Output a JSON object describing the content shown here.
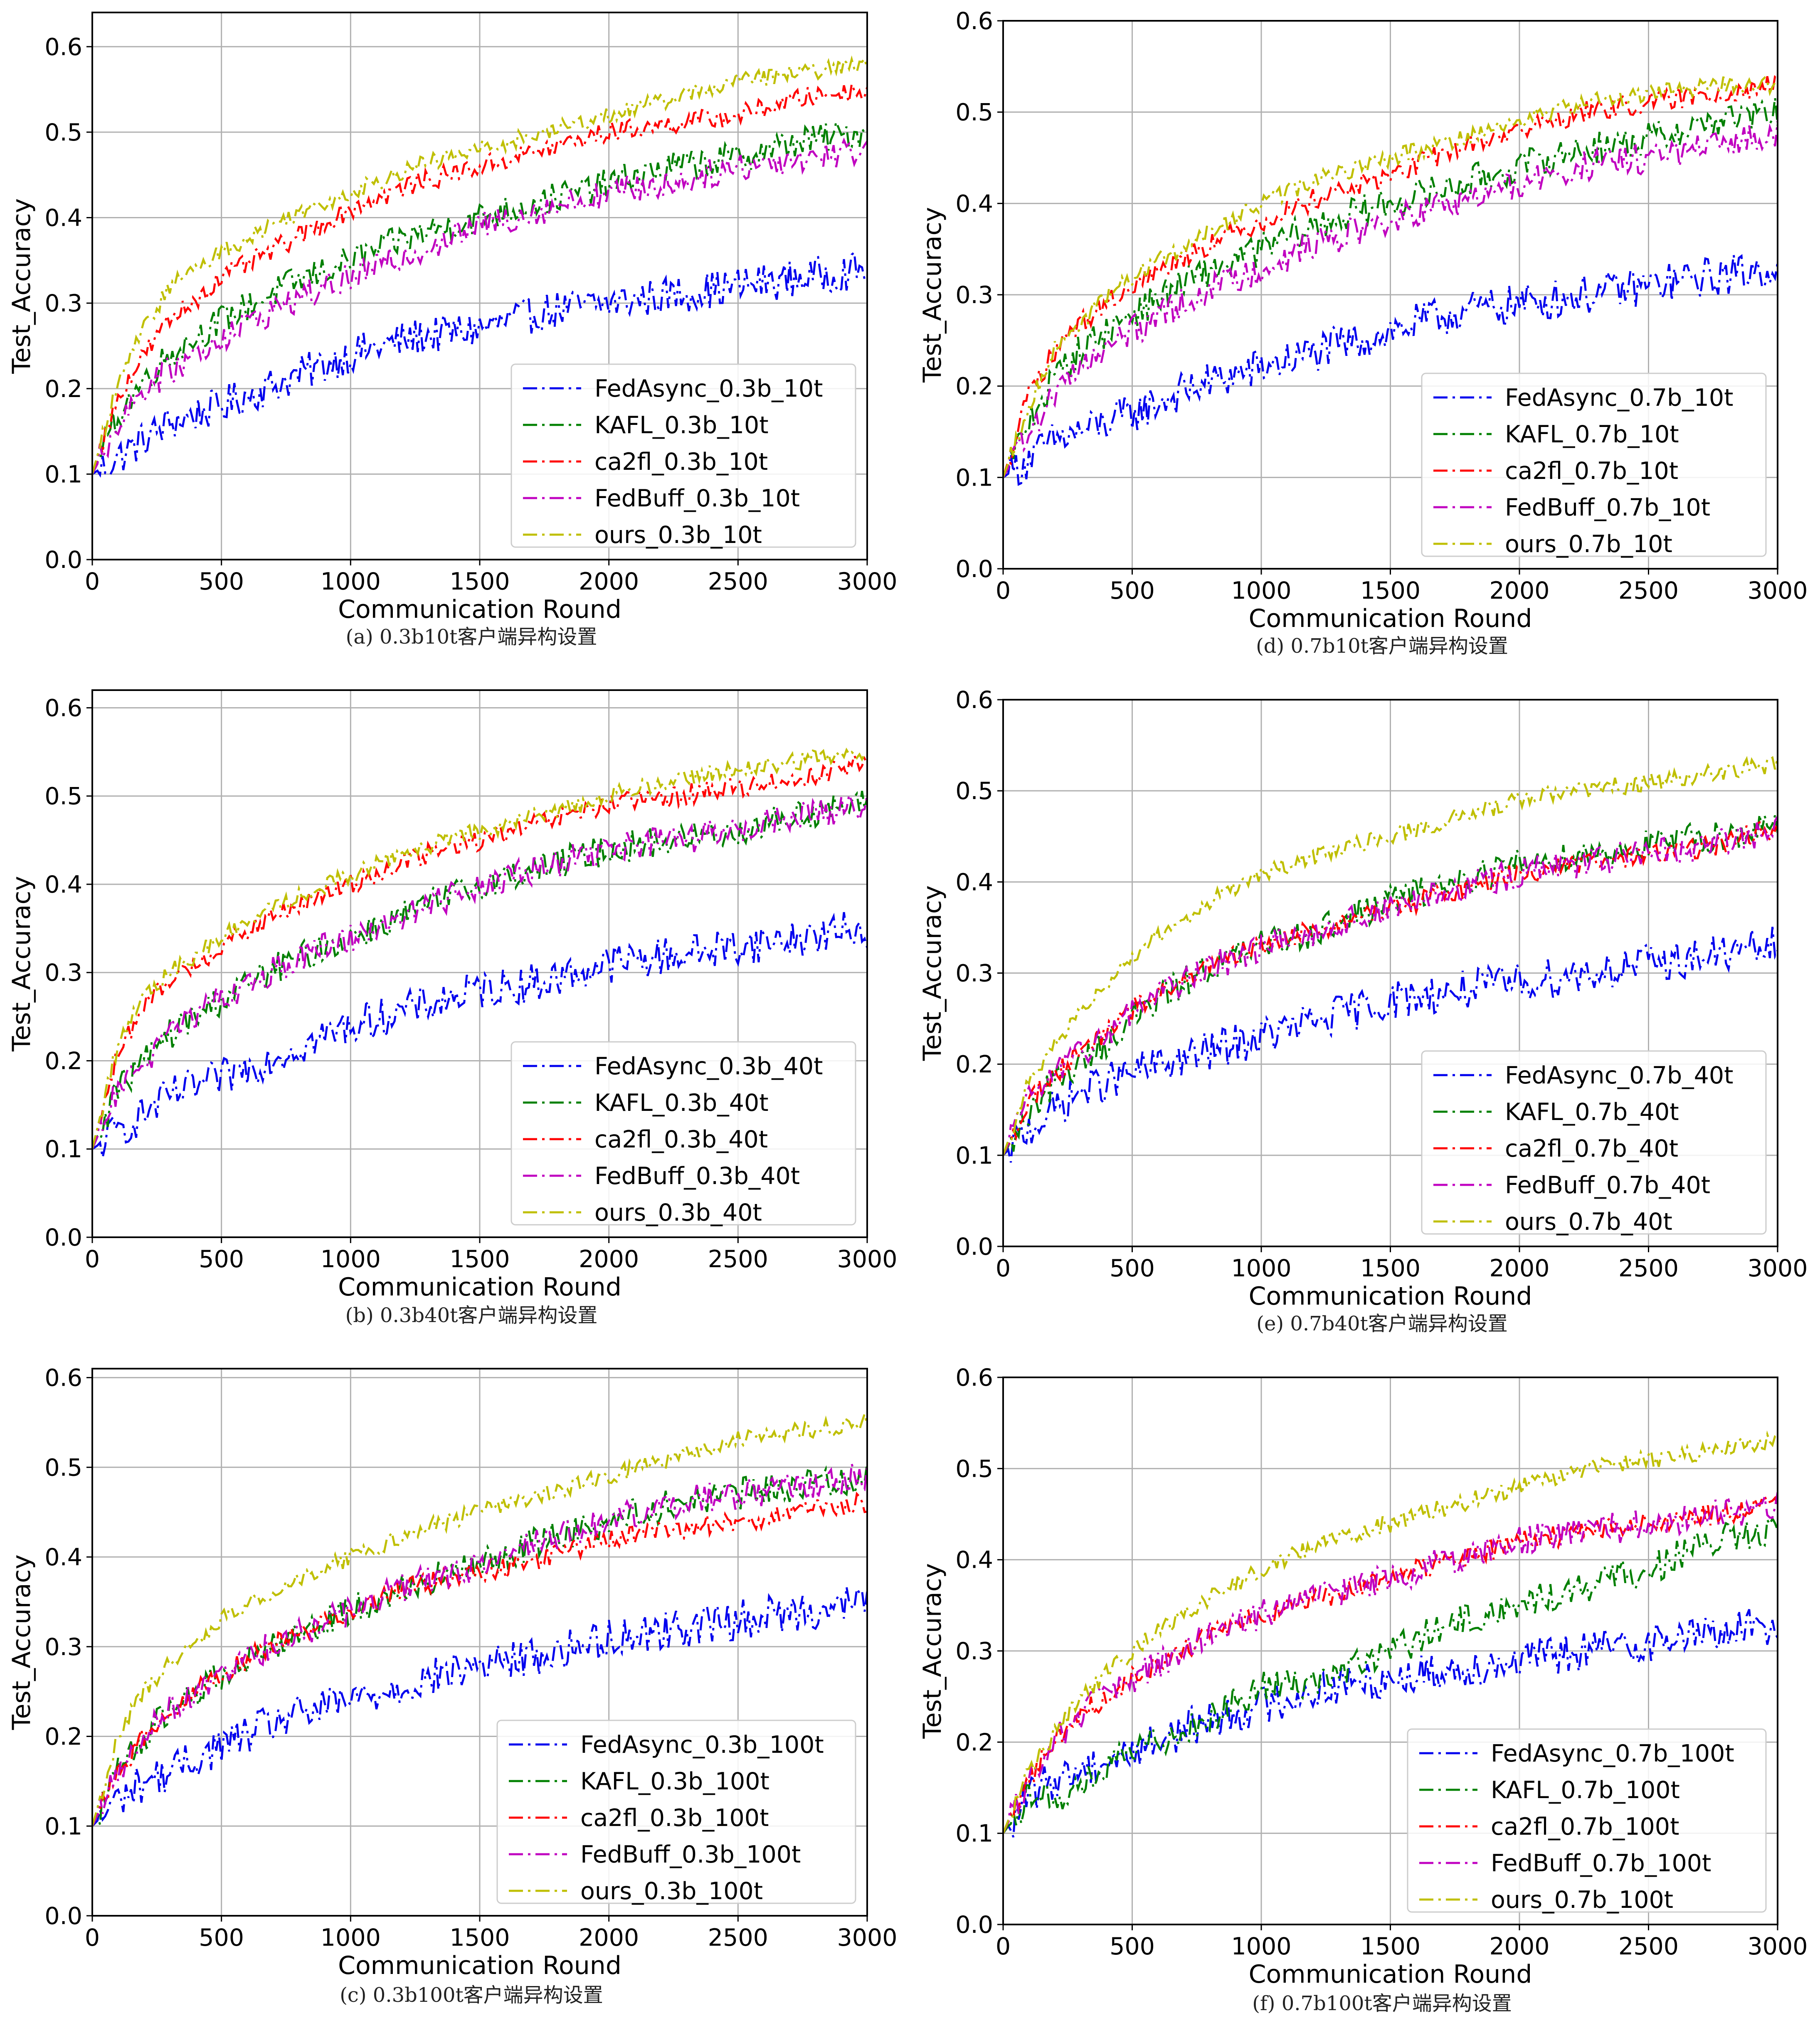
{
  "colors": {
    "FedAsync": "#0000ee",
    "KAFL": "#008000",
    "ca2fl": "#ff0000",
    "FedBuff": "#c000c0",
    "ours": "#bfbf00"
  },
  "chart_data": [
    {
      "id": "a",
      "type": "line",
      "caption": "(a) 0.3b10t客户端异构设置",
      "xlabel": "Communication Round",
      "ylabel": "Test_Accuracy",
      "xlim": [
        0,
        3000
      ],
      "ylim": [
        0,
        0.64
      ],
      "xticks": [
        "0",
        "500",
        "1000",
        "1500",
        "2000",
        "2500",
        "3000"
      ],
      "yticks": [
        "0.0",
        "0.1",
        "0.2",
        "0.3",
        "0.4",
        "0.5",
        "0.6"
      ],
      "grid": true,
      "legend_position": "lower-right",
      "x": [
        0,
        100,
        200,
        300,
        500,
        750,
        1000,
        1250,
        1500,
        1750,
        2000,
        2250,
        2500,
        2750,
        3000
      ],
      "series": [
        {
          "name": "FedAsync_0.3b_10t",
          "key": "FedAsync",
          "values": [
            0.1,
            0.12,
            0.14,
            0.16,
            0.18,
            0.21,
            0.24,
            0.26,
            0.27,
            0.29,
            0.3,
            0.31,
            0.32,
            0.33,
            0.34
          ]
        },
        {
          "name": "KAFL_0.3b_10t",
          "key": "KAFL",
          "values": [
            0.1,
            0.17,
            0.21,
            0.24,
            0.28,
            0.32,
            0.35,
            0.38,
            0.4,
            0.42,
            0.44,
            0.46,
            0.47,
            0.49,
            0.5
          ]
        },
        {
          "name": "ca2fl_0.3b_10t",
          "key": "ca2fl",
          "values": [
            0.1,
            0.19,
            0.24,
            0.28,
            0.33,
            0.37,
            0.41,
            0.44,
            0.46,
            0.48,
            0.5,
            0.51,
            0.52,
            0.54,
            0.55
          ]
        },
        {
          "name": "FedBuff_0.3b_10t",
          "key": "FedBuff",
          "values": [
            0.1,
            0.16,
            0.2,
            0.22,
            0.26,
            0.3,
            0.33,
            0.36,
            0.39,
            0.41,
            0.43,
            0.44,
            0.46,
            0.47,
            0.48
          ]
        },
        {
          "name": "ours_0.3b_10t",
          "key": "ours",
          "values": [
            0.1,
            0.21,
            0.27,
            0.32,
            0.36,
            0.4,
            0.43,
            0.46,
            0.48,
            0.5,
            0.52,
            0.54,
            0.56,
            0.57,
            0.58
          ]
        }
      ]
    },
    {
      "id": "d",
      "type": "line",
      "caption": "(d) 0.7b10t客户端异构设置",
      "xlabel": "Communication Round",
      "ylabel": "Test_Accuracy",
      "xlim": [
        0,
        3000
      ],
      "ylim": [
        0,
        0.6
      ],
      "xticks": [
        "0",
        "500",
        "1000",
        "1500",
        "2000",
        "2500",
        "3000"
      ],
      "yticks": [
        "0.0",
        "0.1",
        "0.2",
        "0.3",
        "0.4",
        "0.5",
        "0.6"
      ],
      "grid": true,
      "legend_position": "lower-right",
      "x": [
        0,
        100,
        200,
        300,
        500,
        750,
        1000,
        1250,
        1500,
        1750,
        2000,
        2250,
        2500,
        2750,
        3000
      ],
      "series": [
        {
          "name": "FedAsync_0.7b_10t",
          "key": "FedAsync",
          "values": [
            0.1,
            0.12,
            0.14,
            0.15,
            0.17,
            0.2,
            0.22,
            0.24,
            0.26,
            0.28,
            0.29,
            0.3,
            0.31,
            0.32,
            0.33
          ]
        },
        {
          "name": "KAFL_0.7b_10t",
          "key": "KAFL",
          "values": [
            0.1,
            0.16,
            0.21,
            0.24,
            0.28,
            0.32,
            0.35,
            0.38,
            0.4,
            0.42,
            0.44,
            0.46,
            0.47,
            0.49,
            0.5
          ]
        },
        {
          "name": "ca2fl_0.7b_10t",
          "key": "ca2fl",
          "values": [
            0.1,
            0.19,
            0.24,
            0.27,
            0.31,
            0.35,
            0.38,
            0.41,
            0.43,
            0.46,
            0.48,
            0.5,
            0.51,
            0.52,
            0.53
          ]
        },
        {
          "name": "FedBuff_0.7b_10t",
          "key": "FedBuff",
          "values": [
            0.1,
            0.15,
            0.19,
            0.22,
            0.26,
            0.3,
            0.33,
            0.36,
            0.38,
            0.4,
            0.42,
            0.44,
            0.45,
            0.46,
            0.48
          ]
        },
        {
          "name": "ours_0.7b_10t",
          "key": "ours",
          "values": [
            0.1,
            0.18,
            0.24,
            0.27,
            0.32,
            0.36,
            0.4,
            0.43,
            0.45,
            0.47,
            0.49,
            0.51,
            0.52,
            0.53,
            0.53
          ]
        }
      ]
    },
    {
      "id": "b",
      "type": "line",
      "caption": "(b) 0.3b40t客户端异构设置",
      "xlabel": "Communication Round",
      "ylabel": "Test_Accuracy",
      "xlim": [
        0,
        3000
      ],
      "ylim": [
        0,
        0.62
      ],
      "xticks": [
        "0",
        "500",
        "1000",
        "1500",
        "2000",
        "2500",
        "3000"
      ],
      "yticks": [
        "0.0",
        "0.1",
        "0.2",
        "0.3",
        "0.4",
        "0.5",
        "0.6"
      ],
      "grid": true,
      "legend_position": "lower-right",
      "x": [
        0,
        100,
        200,
        300,
        500,
        750,
        1000,
        1250,
        1500,
        1750,
        2000,
        2250,
        2500,
        2750,
        3000
      ],
      "series": [
        {
          "name": "FedAsync_0.3b_40t",
          "key": "FedAsync",
          "values": [
            0.1,
            0.12,
            0.14,
            0.16,
            0.18,
            0.21,
            0.24,
            0.26,
            0.28,
            0.29,
            0.31,
            0.32,
            0.33,
            0.34,
            0.35
          ]
        },
        {
          "name": "KAFL_0.3b_40t",
          "key": "KAFL",
          "values": [
            0.1,
            0.17,
            0.2,
            0.23,
            0.27,
            0.31,
            0.34,
            0.37,
            0.4,
            0.42,
            0.44,
            0.45,
            0.46,
            0.48,
            0.49
          ]
        },
        {
          "name": "ca2fl_0.3b_40t",
          "key": "ca2fl",
          "values": [
            0.1,
            0.21,
            0.26,
            0.29,
            0.33,
            0.37,
            0.4,
            0.43,
            0.45,
            0.47,
            0.49,
            0.5,
            0.51,
            0.52,
            0.54
          ]
        },
        {
          "name": "FedBuff_0.3b_40t",
          "key": "FedBuff",
          "values": [
            0.1,
            0.17,
            0.2,
            0.23,
            0.27,
            0.31,
            0.34,
            0.37,
            0.4,
            0.42,
            0.44,
            0.45,
            0.46,
            0.48,
            0.49
          ]
        },
        {
          "name": "ours_0.3b_40t",
          "key": "ours",
          "values": [
            0.1,
            0.22,
            0.27,
            0.3,
            0.34,
            0.38,
            0.41,
            0.44,
            0.46,
            0.48,
            0.5,
            0.52,
            0.53,
            0.54,
            0.55
          ]
        }
      ]
    },
    {
      "id": "e",
      "type": "line",
      "caption": "(e) 0.7b40t客户端异构设置",
      "xlabel": "Communication Round",
      "ylabel": "Test_Accuracy",
      "xlim": [
        0,
        3000
      ],
      "ylim": [
        0,
        0.6
      ],
      "xticks": [
        "0",
        "500",
        "1000",
        "1500",
        "2000",
        "2500",
        "3000"
      ],
      "yticks": [
        "0.0",
        "0.1",
        "0.2",
        "0.3",
        "0.4",
        "0.5",
        "0.6"
      ],
      "grid": true,
      "legend_position": "lower-right",
      "x": [
        0,
        100,
        200,
        300,
        500,
        750,
        1000,
        1250,
        1500,
        1750,
        2000,
        2250,
        2500,
        2750,
        3000
      ],
      "series": [
        {
          "name": "FedAsync_0.7b_40t",
          "key": "FedAsync",
          "values": [
            0.1,
            0.13,
            0.15,
            0.17,
            0.19,
            0.21,
            0.23,
            0.25,
            0.27,
            0.28,
            0.29,
            0.3,
            0.31,
            0.32,
            0.33
          ]
        },
        {
          "name": "KAFL_0.7b_40t",
          "key": "KAFL",
          "values": [
            0.1,
            0.15,
            0.18,
            0.2,
            0.25,
            0.3,
            0.33,
            0.35,
            0.38,
            0.4,
            0.42,
            0.43,
            0.44,
            0.45,
            0.46
          ]
        },
        {
          "name": "ca2fl_0.7b_40t",
          "key": "ca2fl",
          "values": [
            0.1,
            0.16,
            0.19,
            0.21,
            0.26,
            0.3,
            0.33,
            0.35,
            0.37,
            0.39,
            0.41,
            0.42,
            0.43,
            0.44,
            0.46
          ]
        },
        {
          "name": "FedBuff_0.7b_40t",
          "key": "FedBuff",
          "values": [
            0.1,
            0.16,
            0.19,
            0.21,
            0.26,
            0.3,
            0.33,
            0.35,
            0.37,
            0.39,
            0.41,
            0.42,
            0.43,
            0.44,
            0.46
          ]
        },
        {
          "name": "ours_0.7b_40t",
          "key": "ours",
          "values": [
            0.1,
            0.18,
            0.22,
            0.26,
            0.32,
            0.37,
            0.41,
            0.43,
            0.45,
            0.47,
            0.49,
            0.5,
            0.51,
            0.52,
            0.53
          ]
        }
      ]
    },
    {
      "id": "c",
      "type": "line",
      "caption": "(c) 0.3b100t客户端异构设置",
      "xlabel": "Communication Round",
      "ylabel": "Test_Accuracy",
      "xlim": [
        0,
        3000
      ],
      "ylim": [
        0,
        0.61
      ],
      "xticks": [
        "0",
        "500",
        "1000",
        "1500",
        "2000",
        "2500",
        "3000"
      ],
      "yticks": [
        "0.0",
        "0.1",
        "0.2",
        "0.3",
        "0.4",
        "0.5",
        "0.6"
      ],
      "grid": true,
      "legend_position": "lower-right",
      "x": [
        0,
        100,
        200,
        300,
        500,
        750,
        1000,
        1250,
        1500,
        1750,
        2000,
        2250,
        2500,
        2750,
        3000
      ],
      "series": [
        {
          "name": "FedAsync_0.3b_100t",
          "key": "FedAsync",
          "values": [
            0.1,
            0.13,
            0.15,
            0.16,
            0.19,
            0.22,
            0.24,
            0.26,
            0.28,
            0.29,
            0.31,
            0.32,
            0.33,
            0.34,
            0.35
          ]
        },
        {
          "name": "KAFL_0.3b_100t",
          "key": "KAFL",
          "values": [
            0.1,
            0.16,
            0.2,
            0.23,
            0.27,
            0.31,
            0.34,
            0.37,
            0.39,
            0.42,
            0.44,
            0.46,
            0.47,
            0.48,
            0.49
          ]
        },
        {
          "name": "ca2fl_0.3b_100t",
          "key": "ca2fl",
          "values": [
            0.1,
            0.16,
            0.2,
            0.23,
            0.27,
            0.31,
            0.34,
            0.37,
            0.38,
            0.4,
            0.42,
            0.43,
            0.44,
            0.45,
            0.46
          ]
        },
        {
          "name": "FedBuff_0.3b_100t",
          "key": "FedBuff",
          "values": [
            0.1,
            0.16,
            0.2,
            0.23,
            0.27,
            0.31,
            0.34,
            0.37,
            0.39,
            0.42,
            0.44,
            0.46,
            0.47,
            0.48,
            0.49
          ]
        },
        {
          "name": "ours_0.3b_100t",
          "key": "ours",
          "values": [
            0.1,
            0.2,
            0.25,
            0.28,
            0.33,
            0.37,
            0.4,
            0.43,
            0.45,
            0.47,
            0.49,
            0.51,
            0.53,
            0.54,
            0.55
          ]
        }
      ]
    },
    {
      "id": "f",
      "type": "line",
      "caption": "(f) 0.7b100t客户端异构设置",
      "xlabel": "Communication Round",
      "ylabel": "Test_Accuracy",
      "xlim": [
        0,
        3000
      ],
      "ylim": [
        0,
        0.6
      ],
      "xticks": [
        "0",
        "500",
        "1000",
        "1500",
        "2000",
        "2500",
        "3000"
      ],
      "yticks": [
        "0.0",
        "0.1",
        "0.2",
        "0.3",
        "0.4",
        "0.5",
        "0.6"
      ],
      "grid": true,
      "legend_position": "lower-right",
      "x": [
        0,
        100,
        200,
        300,
        500,
        750,
        1000,
        1250,
        1500,
        1750,
        2000,
        2250,
        2500,
        2750,
        3000
      ],
      "series": [
        {
          "name": "FedAsync_0.7b_100t",
          "key": "FedAsync",
          "values": [
            0.1,
            0.14,
            0.16,
            0.17,
            0.19,
            0.22,
            0.24,
            0.26,
            0.27,
            0.28,
            0.29,
            0.3,
            0.31,
            0.32,
            0.33
          ]
        },
        {
          "name": "KAFL_0.7b_100t",
          "key": "KAFL",
          "values": [
            0.1,
            0.14,
            0.14,
            0.15,
            0.19,
            0.22,
            0.26,
            0.27,
            0.3,
            0.33,
            0.35,
            0.37,
            0.39,
            0.42,
            0.43
          ]
        },
        {
          "name": "ca2fl_0.7b_100t",
          "key": "ca2fl",
          "values": [
            0.1,
            0.16,
            0.2,
            0.23,
            0.27,
            0.31,
            0.34,
            0.36,
            0.38,
            0.4,
            0.42,
            0.43,
            0.44,
            0.45,
            0.46
          ]
        },
        {
          "name": "FedBuff_0.7b_100t",
          "key": "FedBuff",
          "values": [
            0.1,
            0.16,
            0.2,
            0.23,
            0.27,
            0.31,
            0.34,
            0.36,
            0.38,
            0.4,
            0.42,
            0.43,
            0.44,
            0.45,
            0.46
          ]
        },
        {
          "name": "ours_0.7b_100t",
          "key": "ours",
          "values": [
            0.1,
            0.17,
            0.21,
            0.25,
            0.3,
            0.35,
            0.39,
            0.42,
            0.44,
            0.46,
            0.48,
            0.5,
            0.51,
            0.52,
            0.53
          ]
        }
      ]
    }
  ]
}
